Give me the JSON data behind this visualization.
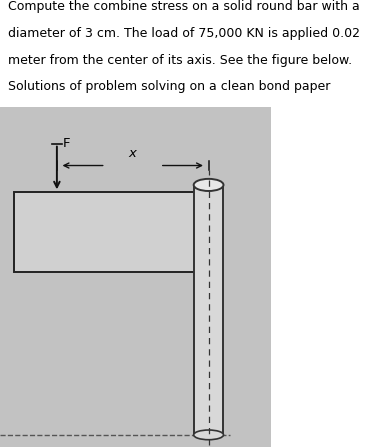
{
  "title_lines": [
    "Compute the combine stress on a solid round bar with a",
    "diameter of 3 cm. The load of 75,000 KN is applied 0.02",
    "meter from the center of its axis. See the figure below.",
    "Solutions of problem solving on a clean bond paper"
  ],
  "bg_color": "#ffffff",
  "fig_bg": "#c2c2c2",
  "text_fontsize": 9.0,
  "label_fontsize": 9.5,
  "arrow_color": "#111111",
  "dashed_color": "#333333",
  "plate_edge": "#222222",
  "cyl_edge": "#333333",
  "label_F": "F",
  "label_x": "x"
}
